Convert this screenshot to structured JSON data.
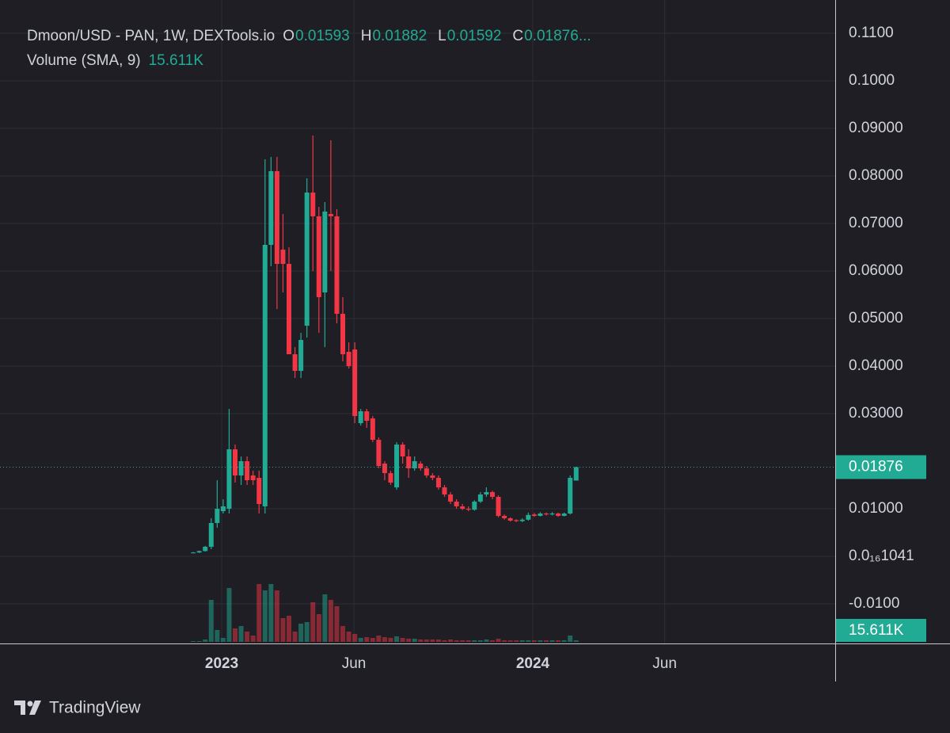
{
  "chart_data": {
    "type": "candlestick",
    "title": "Dmoon/USD - PAN, 1W, DEXTools.io",
    "ohlc_letters": [
      "O",
      "H",
      "L",
      "C"
    ],
    "legend_ellipsis": "...",
    "volume_title": "Volume (SMA, 9)",
    "volume_label": "15.611K",
    "open": [
      0.0007,
      0.0008,
      0.0011,
      0.002,
      0.007,
      0.0095,
      0.01,
      0.0225,
      0.017,
      0.02,
      0.017,
      0.0165,
      0.0105,
      0.0655,
      0.081,
      0.0645,
      0.0615,
      0.0425,
      0.039,
      0.0485,
      0.0765,
      0.0715,
      0.0555,
      0.072,
      0.0715,
      0.051,
      0.043,
      0.0435,
      0.028,
      0.0305,
      0.029,
      0.0245,
      0.0195,
      0.0175,
      0.0145,
      0.0235,
      0.021,
      0.0185,
      0.0195,
      0.0185,
      0.017,
      0.0165,
      0.0145,
      0.013,
      0.0115,
      0.0105,
      0.01,
      0.0098,
      0.0115,
      0.013,
      0.0135,
      0.0125,
      0.0085,
      0.008,
      0.0076,
      0.0074,
      0.0077,
      0.0088,
      0.0085,
      0.009,
      0.0088,
      0.009,
      0.0085,
      0.009,
      0.01593
    ],
    "high": [
      0.0009,
      0.0012,
      0.0022,
      0.008,
      0.016,
      0.012,
      0.031,
      0.0235,
      0.021,
      0.021,
      0.018,
      0.018,
      0.0835,
      0.084,
      0.084,
      0.072,
      0.065,
      0.044,
      0.047,
      0.0795,
      0.0885,
      0.0735,
      0.0745,
      0.0875,
      0.073,
      0.0545,
      0.045,
      0.045,
      0.031,
      0.031,
      0.0295,
      0.025,
      0.02,
      0.018,
      0.024,
      0.024,
      0.0225,
      0.021,
      0.02,
      0.019,
      0.0175,
      0.017,
      0.015,
      0.0135,
      0.012,
      0.011,
      0.0105,
      0.0118,
      0.0135,
      0.0145,
      0.0138,
      0.0128,
      0.0088,
      0.0082,
      0.0078,
      0.008,
      0.0092,
      0.0091,
      0.0093,
      0.0092,
      0.0093,
      0.0092,
      0.0092,
      0.017,
      0.01882
    ],
    "low": [
      0.0006,
      0.0007,
      0.001,
      0.0015,
      0.006,
      0.009,
      0.009,
      0.0155,
      0.015,
      0.015,
      0.015,
      0.009,
      0.009,
      0.061,
      0.052,
      0.0555,
      0.043,
      0.0375,
      0.0375,
      0.046,
      0.06,
      0.047,
      0.044,
      0.06,
      0.049,
      0.041,
      0.0395,
      0.028,
      0.0275,
      0.027,
      0.024,
      0.0185,
      0.016,
      0.015,
      0.014,
      0.0195,
      0.0165,
      0.018,
      0.018,
      0.0165,
      0.016,
      0.014,
      0.0125,
      0.011,
      0.01,
      0.0097,
      0.0095,
      0.0096,
      0.0112,
      0.0125,
      0.012,
      0.0082,
      0.0077,
      0.0073,
      0.0072,
      0.0072,
      0.0075,
      0.0083,
      0.0084,
      0.0086,
      0.0086,
      0.0083,
      0.0084,
      0.0088,
      0.01592
    ],
    "close": [
      0.0008,
      0.0011,
      0.002,
      0.007,
      0.01,
      0.0105,
      0.0225,
      0.017,
      0.02,
      0.016,
      0.016,
      0.011,
      0.0655,
      0.081,
      0.0615,
      0.0615,
      0.0425,
      0.039,
      0.0455,
      0.0765,
      0.0715,
      0.0545,
      0.0725,
      0.0715,
      0.051,
      0.0425,
      0.04,
      0.0295,
      0.0305,
      0.0285,
      0.0245,
      0.019,
      0.0175,
      0.0155,
      0.0235,
      0.021,
      0.0185,
      0.02,
      0.0185,
      0.017,
      0.0165,
      0.0145,
      0.013,
      0.0115,
      0.0105,
      0.01,
      0.0098,
      0.0115,
      0.013,
      0.0135,
      0.0125,
      0.0085,
      0.008,
      0.0075,
      0.0074,
      0.0077,
      0.0087,
      0.0085,
      0.009,
      0.0088,
      0.009,
      0.0085,
      0.009,
      0.0165,
      0.01876
    ],
    "volume": [
      7800,
      7800,
      23400,
      413400,
      117000,
      39000,
      530400,
      132600,
      156000,
      101400,
      62400,
      569400,
      507000,
      569400,
      507000,
      234000,
      257400,
      101400,
      179400,
      195000,
      390000,
      273000,
      468000,
      413400,
      351000,
      156000,
      101400,
      78000,
      39000,
      46800,
      39000,
      62400,
      46800,
      39000,
      54600,
      39000,
      31200,
      31200,
      23400,
      23400,
      23400,
      23400,
      15600,
      23400,
      15600,
      15600,
      15600,
      15600,
      15600,
      23400,
      15600,
      31200,
      15600,
      15600,
      15600,
      15600,
      15600,
      15600,
      15600,
      15600,
      15600,
      15600,
      15600,
      62400,
      15611
    ],
    "vlim": [
      0,
      780000
    ],
    "xlim": [
      -32.3,
      107.3
    ],
    "xticks": [
      {
        "value": 4.76,
        "label": "2023"
      },
      {
        "value": 26.85,
        "label": "Jun"
      },
      {
        "value": 56.75,
        "label": "2024"
      },
      {
        "value": 78.8,
        "label": "Jun"
      }
    ],
    "ylim": [
      -0.01833,
      0.117
    ],
    "yticks": [
      {
        "value": 0.11,
        "label": "0.1100"
      },
      {
        "value": 0.1,
        "label": "0.1000"
      },
      {
        "value": 0.09,
        "label": "0.09000"
      },
      {
        "value": 0.08,
        "label": "0.08000"
      },
      {
        "value": 0.07,
        "label": "0.07000"
      },
      {
        "value": 0.06,
        "label": "0.06000"
      },
      {
        "value": 0.05,
        "label": "0.05000"
      },
      {
        "value": 0.04,
        "label": "0.04000"
      },
      {
        "value": 0.03,
        "label": "0.03000"
      },
      {
        "value": 0.01,
        "label": "0.01000"
      },
      {
        "value": 1.041e-17,
        "label": "0.0₁₆1041"
      },
      {
        "value": -0.01,
        "label": "-0.0100"
      }
    ],
    "up_color": "#22ab94",
    "down_color": "#f23645",
    "grid": true
  },
  "branding": "TradingView"
}
